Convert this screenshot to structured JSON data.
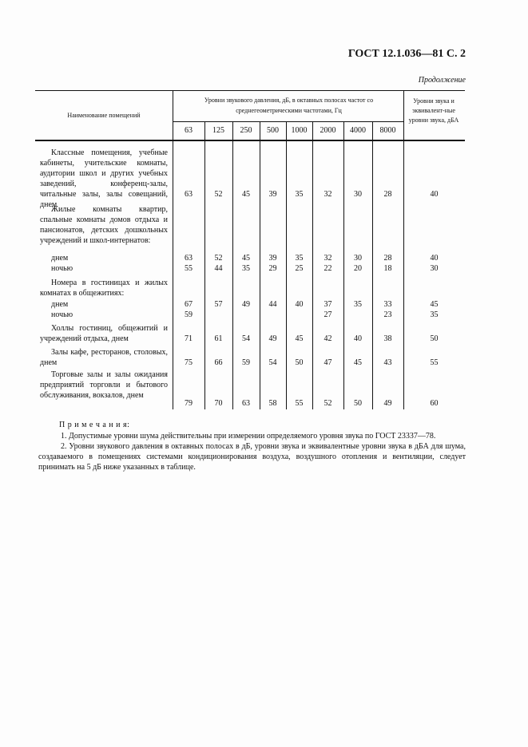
{
  "header": {
    "title": "ГОСТ 12.1.036—81 С. 2",
    "continuation": "Продолжение"
  },
  "table": {
    "col_name_header": "Наименование помещений",
    "group_header": "Уровни звукового давления, дБ, в октавных полосах частот со среднегеометрическими частотами, Гц",
    "last_header": "Уровни звука и эквивалент-ные уровни звука, дБА",
    "frequencies": [
      "63",
      "125",
      "250",
      "500",
      "1000",
      "2000",
      "4000",
      "8000"
    ],
    "rows": [
      {
        "name": "Классные помещения, учебные кабинеты, учительские комнаты, аудитории школ и других учебных заведений, конференц-залы, читальные залы, залы совещаний, днем",
        "values": [
          "63",
          "52",
          "45",
          "39",
          "35",
          "32",
          "30",
          "28",
          "40"
        ]
      },
      {
        "name": "Жилые комнаты квартир, спальные комнаты домов отдыха и пансионатов, детских дошкольных учреждений и школ-интернатов:",
        "sub": [
          {
            "label": "днем",
            "values": [
              "63",
              "52",
              "45",
              "39",
              "35",
              "32",
              "30",
              "28",
              "40"
            ]
          },
          {
            "label": "ночью",
            "values": [
              "55",
              "44",
              "35",
              "29",
              "25",
              "22",
              "20",
              "18",
              "30"
            ]
          }
        ]
      },
      {
        "name": "Номера в гостиницах и жилых комнатах в общежитиях:",
        "sub": [
          {
            "label": "днем",
            "values": [
              "67",
              "57",
              "49",
              "44",
              "40",
              "37",
              "35",
              "33",
              "45"
            ]
          },
          {
            "label": "ночью",
            "values": [
              "59",
              "",
              "",
              "",
              "",
              "27",
              "",
              "23",
              "35"
            ]
          }
        ]
      },
      {
        "name": "Холлы гостиниц, общежитий и учреждений отдыха, днем",
        "values": [
          "71",
          "61",
          "54",
          "49",
          "45",
          "42",
          "40",
          "38",
          "50"
        ]
      },
      {
        "name": "Залы кафе, ресторанов, столовых, днем",
        "values": [
          "75",
          "66",
          "59",
          "54",
          "50",
          "47",
          "45",
          "43",
          "55"
        ]
      },
      {
        "name": "Торговые залы и залы ожидания предприятий торговли и бытового обслуживания, вокзалов, днем",
        "values": [
          "79",
          "70",
          "63",
          "58",
          "55",
          "52",
          "50",
          "49",
          "60"
        ]
      }
    ]
  },
  "notes": {
    "title": "П р и м е ч а н и я:",
    "items": [
      "1. Допустимые уровни шума действительны при измерении определяемого уровня звука по ГОСТ 23337—78.",
      "2. Уровни звукового давления в октавных полосах в дБ, уровни звука и эквивалентные уровни звука в дБА для шума, создаваемого в помещениях системами кондиционирования воздуха, воздушного отопления и вентиляции, следует принимать на 5 дБ ниже указанных в таблице."
    ]
  }
}
